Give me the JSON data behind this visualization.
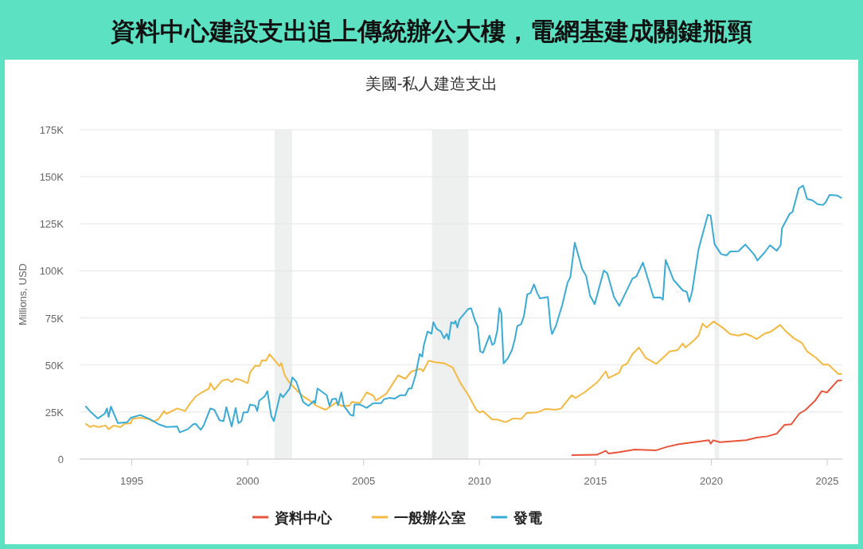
{
  "chart_data": {
    "type": "line",
    "title": "資料中心建設支出追上傳統辦公大樓，電網基建成關鍵瓶頸",
    "subtitle": "美國-私人建造支出",
    "ylabel": "Millions, USD",
    "xlim": [
      1992.75,
      2025.65
    ],
    "xticks": [
      1995,
      2000,
      2005,
      2010,
      2015,
      2020,
      2025
    ],
    "ylim": [
      0,
      175000
    ],
    "yticks": [
      {
        "value": 0,
        "label": "0"
      },
      {
        "value": 25000,
        "label": "25K"
      },
      {
        "value": 50000,
        "label": "50K"
      },
      {
        "value": 75000,
        "label": "75K"
      },
      {
        "value": 100000,
        "label": "100K"
      },
      {
        "value": 125000,
        "label": "125K"
      },
      {
        "value": 150000,
        "label": "150K"
      },
      {
        "value": 175000,
        "label": "175K"
      }
    ],
    "grid": "y",
    "legend": "bottom",
    "line_style": "solid",
    "bands": [
      {
        "axis": "x",
        "from": 2001.16,
        "to": 2001.92,
        "color": "#eef0ef"
      },
      {
        "axis": "x",
        "from": 2007.95,
        "to": 2009.52,
        "color": "#eef0ef"
      },
      {
        "axis": "x",
        "from": 2020.14,
        "to": 2020.34,
        "color": "#eef0ef"
      }
    ],
    "series": [
      {
        "name": "資料中心",
        "color": "#e8553a",
        "x": [
          2014.0,
          2015.06,
          2015.45,
          2015.56,
          2016.03,
          2016.7,
          2017.6,
          2018.08,
          2018.6,
          2019.45,
          2019.9,
          2019.97,
          2020.08,
          2020.37,
          2021.5,
          2021.96,
          2022.42,
          2022.82,
          2023.16,
          2023.45,
          2023.79,
          2024.07,
          2024.48,
          2024.76,
          2024.99,
          2025.45,
          2025.6
        ],
        "values": [
          2100,
          2300,
          4400,
          3000,
          3700,
          5100,
          4600,
          6500,
          7900,
          9300,
          10000,
          8200,
          10000,
          9000,
          10000,
          11400,
          12100,
          13500,
          18200,
          18500,
          24100,
          26200,
          31100,
          36100,
          35400,
          41700,
          41700
        ]
      },
      {
        "name": "一般辦公室",
        "color": "#f5b942",
        "x": [
          1993.02,
          1993.2,
          1993.36,
          1993.54,
          1993.88,
          1994.0,
          1994.22,
          1994.51,
          1994.68,
          1994.97,
          1995.02,
          1995.37,
          1995.71,
          1995.94,
          1996.16,
          1996.39,
          1996.5,
          1996.96,
          1997.3,
          1997.48,
          1997.76,
          1998.02,
          1998.33,
          1998.39,
          1998.56,
          1998.9,
          1999.14,
          1999.31,
          1999.48,
          1999.71,
          2000.0,
          2000.1,
          2000.33,
          2000.5,
          2000.62,
          2000.79,
          2000.94,
          2001.13,
          2001.37,
          2001.45,
          2001.6,
          2001.78,
          2002.1,
          2002.39,
          2002.68,
          2002.97,
          2003.36,
          2003.53,
          2003.81,
          2004.04,
          2004.38,
          2004.5,
          2004.84,
          2005.13,
          2005.42,
          2005.53,
          2005.98,
          2006.49,
          2006.8,
          2007.07,
          2007.47,
          2007.56,
          2007.81,
          2008.04,
          2008.5,
          2008.84,
          2009.18,
          2009.52,
          2009.86,
          2010.0,
          2010.15,
          2010.55,
          2010.77,
          2011.12,
          2011.46,
          2011.8,
          2012.03,
          2012.49,
          2012.83,
          2013.29,
          2013.52,
          2013.97,
          2014.14,
          2014.52,
          2015.1,
          2015.45,
          2015.56,
          2016.03,
          2016.15,
          2016.37,
          2016.6,
          2016.88,
          2017.17,
          2017.63,
          2017.97,
          2018.2,
          2018.54,
          2018.77,
          2018.88,
          2019.22,
          2019.45,
          2019.62,
          2019.79,
          2020.1,
          2020.48,
          2020.82,
          2021.17,
          2021.45,
          2021.74,
          2021.96,
          2022.3,
          2022.54,
          2022.97,
          2023.22,
          2023.56,
          2023.91,
          2024.13,
          2024.53,
          2024.82,
          2025.05,
          2025.48,
          2025.6
        ],
        "values": [
          18700,
          17000,
          17800,
          17000,
          17800,
          15900,
          17800,
          17000,
          18700,
          19100,
          21300,
          22000,
          21300,
          19900,
          21300,
          25500,
          24100,
          26900,
          25500,
          29000,
          33300,
          35400,
          37500,
          40300,
          36800,
          41700,
          42400,
          40900,
          42700,
          42000,
          40300,
          45900,
          49700,
          49400,
          52500,
          52300,
          55700,
          53000,
          49400,
          51000,
          44500,
          41000,
          36800,
          33300,
          31100,
          28300,
          26200,
          27600,
          30000,
          28300,
          28300,
          30400,
          29700,
          35400,
          33700,
          31100,
          34700,
          44500,
          42700,
          46600,
          48000,
          46600,
          52300,
          51600,
          50800,
          48700,
          40300,
          33900,
          26200,
          24800,
          25500,
          21000,
          21000,
          19600,
          21600,
          21300,
          24500,
          24800,
          26600,
          26200,
          26900,
          33900,
          32500,
          35400,
          41000,
          46600,
          43100,
          45900,
          49400,
          50800,
          55800,
          59300,
          53700,
          50600,
          54400,
          57200,
          57900,
          61400,
          59300,
          62800,
          65600,
          72000,
          69900,
          73100,
          69900,
          66400,
          65600,
          66700,
          65300,
          63800,
          66700,
          67500,
          71300,
          67800,
          64200,
          61700,
          57200,
          53700,
          50200,
          50200,
          45200,
          45200
        ]
      },
      {
        "name": "發電",
        "color": "#3aabd6",
        "x": [
          1993.02,
          1993.25,
          1993.54,
          1993.83,
          1993.93,
          1994.0,
          1994.1,
          1994.4,
          1994.8,
          1994.97,
          1995.37,
          1995.77,
          1996.16,
          1996.5,
          1996.96,
          1997.07,
          1997.42,
          1997.65,
          1997.76,
          1997.97,
          1998.1,
          1998.39,
          1998.56,
          1998.79,
          1998.96,
          1999.08,
          1999.31,
          1999.48,
          1999.6,
          1999.73,
          1999.82,
          2000.0,
          2000.1,
          2000.33,
          2000.41,
          2000.5,
          2000.73,
          2000.85,
          2001.02,
          2001.13,
          2001.41,
          2001.52,
          2001.81,
          2001.93,
          2002.1,
          2002.39,
          2002.62,
          2002.85,
          2002.91,
          2003.01,
          2003.41,
          2003.53,
          2003.64,
          2003.81,
          2003.9,
          2004.04,
          2004.15,
          2004.44,
          2004.56,
          2004.61,
          2004.84,
          2005.13,
          2005.42,
          2005.76,
          2005.88,
          2006.11,
          2006.34,
          2006.57,
          2006.8,
          2006.95,
          2007.07,
          2007.24,
          2007.42,
          2007.53,
          2007.59,
          2007.76,
          2007.93,
          2008.01,
          2008.15,
          2008.33,
          2008.47,
          2008.59,
          2008.67,
          2008.78,
          2008.9,
          2008.96,
          2009.05,
          2009.13,
          2009.52,
          2009.64,
          2009.81,
          2009.92,
          2010.03,
          2010.15,
          2010.43,
          2010.55,
          2010.64,
          2010.77,
          2010.86,
          2010.94,
          2011.04,
          2011.23,
          2011.4,
          2011.52,
          2011.63,
          2011.8,
          2011.92,
          2012.06,
          2012.2,
          2012.35,
          2012.49,
          2012.61,
          2012.95,
          2013.07,
          2013.13,
          2013.29,
          2013.57,
          2013.8,
          2013.92,
          2014.11,
          2014.43,
          2014.6,
          2014.77,
          2014.97,
          2015.36,
          2015.51,
          2015.8,
          2016.03,
          2016.6,
          2016.77,
          2017.05,
          2017.51,
          2017.8,
          2017.91,
          2018.03,
          2018.37,
          2018.77,
          2018.94,
          2019.05,
          2019.17,
          2019.45,
          2019.85,
          2019.97,
          2020.14,
          2020.42,
          2020.65,
          2020.82,
          2021.17,
          2021.47,
          2021.85,
          2021.99,
          2022.3,
          2022.53,
          2022.82,
          2022.99,
          2023.05,
          2023.39,
          2023.5,
          2023.77,
          2023.96,
          2024.13,
          2024.36,
          2024.59,
          2024.82,
          2024.93,
          2025.1,
          2025.44,
          2025.6
        ],
        "values": [
          27900,
          24800,
          21600,
          24100,
          26900,
          22400,
          27900,
          19100,
          19600,
          22000,
          23400,
          21300,
          18500,
          17000,
          17300,
          14200,
          15900,
          18500,
          18800,
          15600,
          17800,
          26900,
          26200,
          20600,
          20200,
          27600,
          17300,
          27200,
          19100,
          20200,
          24800,
          24800,
          29000,
          28300,
          25500,
          31100,
          33300,
          36100,
          22700,
          20200,
          34700,
          32800,
          37500,
          43400,
          41000,
          30400,
          28300,
          30900,
          29700,
          37500,
          33900,
          28300,
          31800,
          32100,
          28600,
          35400,
          28300,
          23400,
          23000,
          29000,
          29000,
          27200,
          29700,
          29700,
          31800,
          32500,
          32100,
          33900,
          33900,
          37500,
          37500,
          44500,
          55800,
          54400,
          60000,
          67800,
          66600,
          72700,
          69200,
          67800,
          64200,
          66600,
          63500,
          72700,
          72000,
          73400,
          69900,
          74100,
          79800,
          80100,
          73400,
          70600,
          57200,
          56500,
          65600,
          60700,
          61400,
          68500,
          80200,
          77600,
          50800,
          53700,
          57900,
          63500,
          70600,
          71700,
          76200,
          87500,
          88200,
          92800,
          88200,
          85400,
          86100,
          69900,
          66400,
          70600,
          81900,
          93800,
          96700,
          115000,
          100900,
          97300,
          86800,
          82300,
          100200,
          98800,
          86100,
          81400,
          95900,
          97100,
          104400,
          85800,
          85900,
          84700,
          105800,
          95200,
          89600,
          88900,
          83600,
          88900,
          111500,
          129800,
          129400,
          114200,
          108900,
          108200,
          110300,
          110400,
          114000,
          108600,
          105500,
          109800,
          113600,
          110700,
          113600,
          122700,
          130500,
          131200,
          143800,
          145300,
          138200,
          137500,
          135400,
          135000,
          136400,
          140300,
          140000,
          138800
        ]
      }
    ]
  }
}
